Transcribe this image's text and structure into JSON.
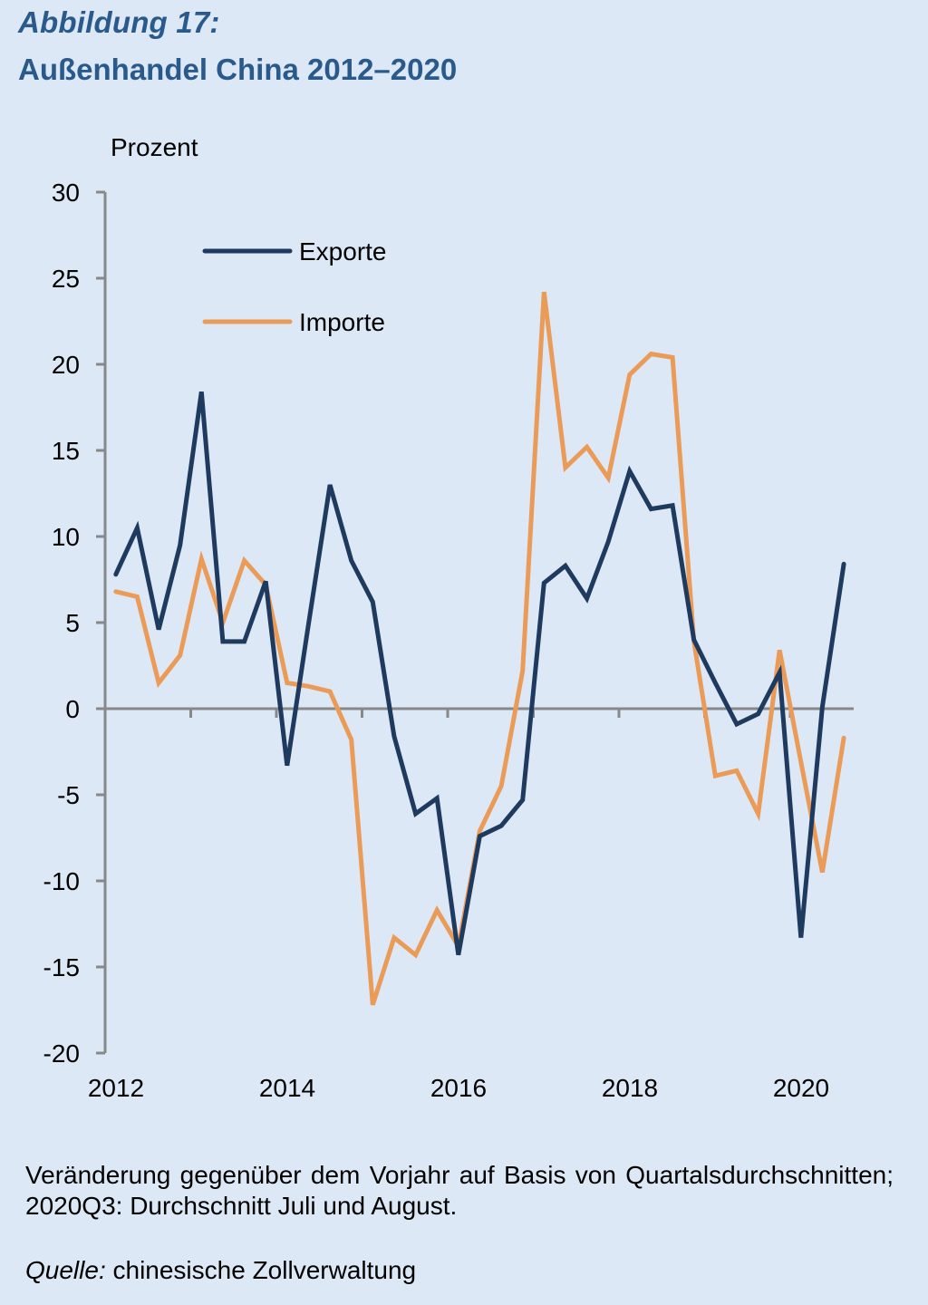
{
  "figure": {
    "label": "Abbildung 17:",
    "title": "Außenhandel China 2012–2020"
  },
  "note": "Veränderung gegenüber dem Vorjahr auf Basis von Quartalsdurchschnitten; 2020Q3: Durchschnitt Juli und August.",
  "source": {
    "label": "Quelle:",
    "text": " chinesische Zollverwaltung"
  },
  "colors": {
    "background": "#dde8f6",
    "title": "#2a5a8c",
    "exports": "#1f3a5f",
    "imports": "#eb9b58",
    "axis": "#888888"
  },
  "chart_data": {
    "type": "line",
    "title": "Außenhandel China 2012–2020",
    "ylabel": "Prozent",
    "xlabel": "",
    "ylim": [
      -20,
      30
    ],
    "yticks": [
      30,
      25,
      20,
      15,
      10,
      5,
      0,
      -5,
      -10,
      -15,
      -20
    ],
    "xticks": [
      "2012",
      "2014",
      "2016",
      "2018",
      "2020"
    ],
    "xrange_years": [
      2012,
      2021
    ],
    "grid": false,
    "legend_position": "top-left",
    "x": [
      "2012Q1",
      "2012Q2",
      "2012Q3",
      "2012Q4",
      "2013Q1",
      "2013Q2",
      "2013Q3",
      "2013Q4",
      "2014Q1",
      "2014Q2",
      "2014Q3",
      "2014Q4",
      "2015Q1",
      "2015Q2",
      "2015Q3",
      "2015Q4",
      "2016Q1",
      "2016Q2",
      "2016Q3",
      "2016Q4",
      "2017Q1",
      "2017Q2",
      "2017Q3",
      "2017Q4",
      "2018Q1",
      "2018Q2",
      "2018Q3",
      "2018Q4",
      "2019Q1",
      "2019Q2",
      "2019Q3",
      "2019Q4",
      "2020Q1",
      "2020Q2",
      "2020Q3"
    ],
    "series": [
      {
        "name": "Exporte",
        "values": [
          7.8,
          10.5,
          4.6,
          9.5,
          18.4,
          3.9,
          3.9,
          7.4,
          -3.3,
          4.9,
          13.0,
          8.6,
          6.2,
          -1.6,
          -6.1,
          -5.2,
          -14.3,
          -7.4,
          -6.8,
          -5.3,
          7.3,
          8.3,
          6.4,
          9.7,
          13.8,
          11.6,
          11.8,
          4.0,
          1.5,
          -0.9,
          -0.3,
          2.1,
          -13.3,
          0.1,
          8.4
        ]
      },
      {
        "name": "Importe",
        "values": [
          6.8,
          6.5,
          1.5,
          3.1,
          8.7,
          5.0,
          8.6,
          7.2,
          1.5,
          1.3,
          1.0,
          -1.8,
          -17.2,
          -13.3,
          -14.3,
          -11.7,
          -13.8,
          -7.1,
          -4.5,
          2.2,
          24.2,
          14.0,
          15.2,
          13.4,
          19.4,
          20.6,
          20.4,
          3.9,
          -3.9,
          -3.6,
          -6.1,
          3.4,
          -3.1,
          -9.5,
          -1.7
        ]
      }
    ]
  }
}
